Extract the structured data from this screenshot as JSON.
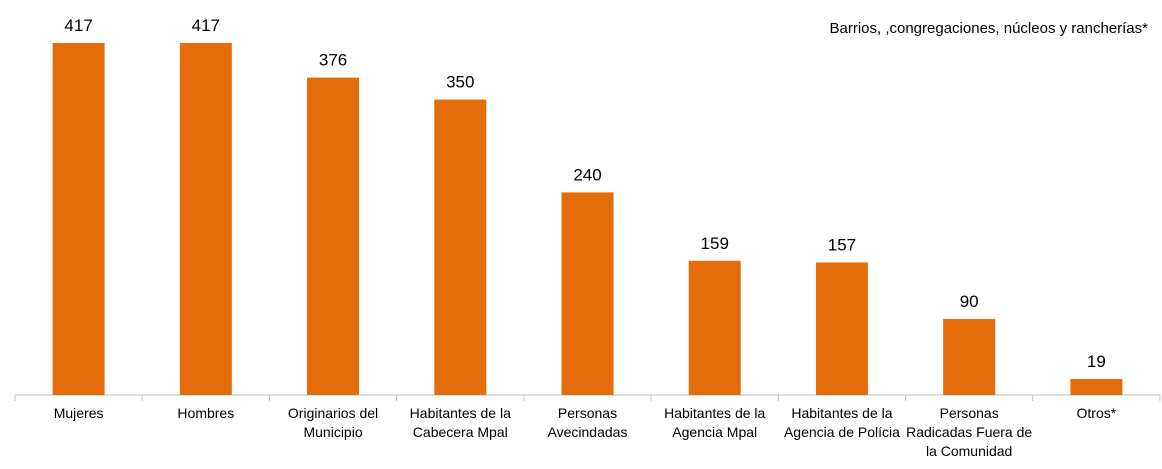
{
  "chart_data": {
    "type": "bar",
    "annotation": "Barrios, ,congregaciones, núcleos y rancherías*",
    "categories": [
      "Mujeres",
      "Hombres",
      "Originarios del Municipio",
      "Habitantes de la Cabecera Mpal",
      "Personas Avecindadas",
      "Habitantes de la Agencia Mpal",
      "Habitantes de la Agencia de Polícia",
      "Personas Radicadas Fuera de la Comunidad",
      "Otros*"
    ],
    "values": [
      417,
      417,
      376,
      350,
      240,
      159,
      157,
      90,
      19
    ],
    "color": "#e46c0a"
  }
}
